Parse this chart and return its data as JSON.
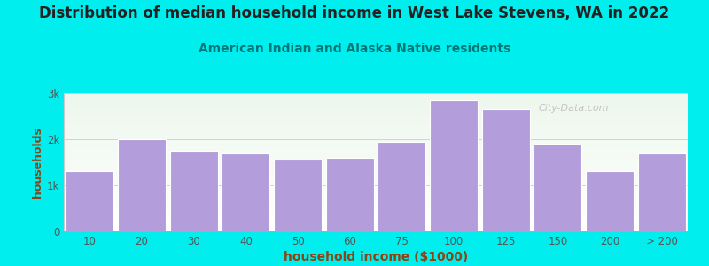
{
  "title": "Distribution of median household income in West Lake Stevens, WA in 2022",
  "subtitle": "American Indian and Alaska Native residents",
  "xlabel": "household income ($1000)",
  "ylabel": "households",
  "bar_labels": [
    "10",
    "20",
    "30",
    "40",
    "50",
    "60",
    "75",
    "100",
    "125",
    "150",
    "200",
    "> 200"
  ],
  "bar_values": [
    1300,
    2000,
    1750,
    1700,
    1550,
    1600,
    1950,
    2850,
    2650,
    1900,
    1300,
    1700
  ],
  "bar_color": "#b39ddb",
  "bar_edge_color": "#ffffff",
  "background_color": "#00eeee",
  "title_color": "#222222",
  "subtitle_color": "#007777",
  "axis_label_color": "#8B4513",
  "tick_label_color": "#555555",
  "ylim": [
    0,
    3000
  ],
  "yticks": [
    0,
    1000,
    2000,
    3000
  ],
  "ytick_labels": [
    "0",
    "1k",
    "2k",
    "3k"
  ],
  "title_fontsize": 12,
  "subtitle_fontsize": 10,
  "xlabel_fontsize": 10,
  "ylabel_fontsize": 9,
  "watermark": "City-Data.com"
}
